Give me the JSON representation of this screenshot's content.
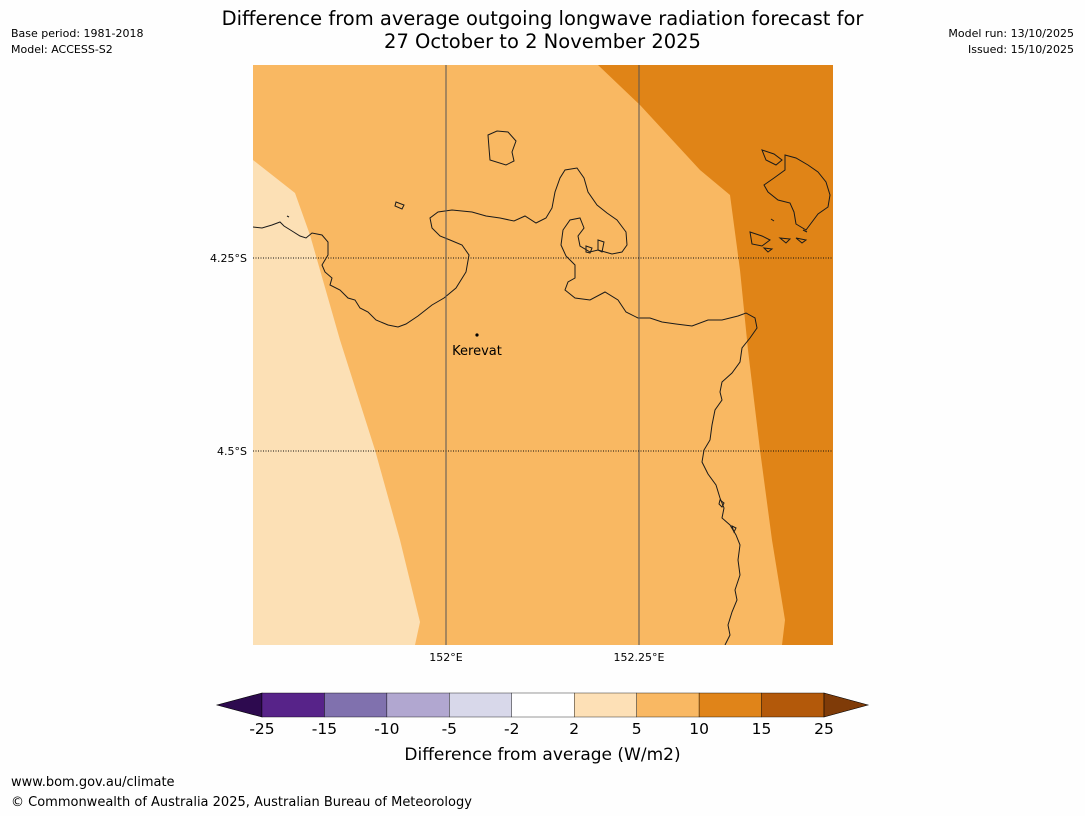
{
  "meta": {
    "base_period": "Base period: 1981-2018",
    "model": "Model: ACCESS-S2",
    "model_run": "Model run: 13/10/2025",
    "issued": "Issued: 15/10/2025"
  },
  "title": {
    "line1": "Difference from average outgoing longwave radiation forecast for",
    "line2": "27 October to 2 November 2025"
  },
  "map": {
    "lat_labels": [
      "4.25°S",
      "4.5°S"
    ],
    "lon_labels": [
      "152°E",
      "152.25°E"
    ],
    "place": "Kerevat",
    "colors": {
      "pale": "#fce0b5",
      "light": "#f9b862",
      "dark": "#e08417",
      "coast": "#1a1a1a"
    }
  },
  "colorbar": {
    "ticks": [
      "-25",
      "-15",
      "-10",
      "-5",
      "-2",
      "2",
      "5",
      "10",
      "15",
      "25"
    ],
    "colors": [
      "#2d0a4f",
      "#572389",
      "#8071ae",
      "#b1a7d0",
      "#d8d8ea",
      "#ffffff",
      "#fde0b6",
      "#f9b863",
      "#e08419",
      "#b3590a",
      "#7f3b08"
    ],
    "label": "Difference from average (W/m2)"
  },
  "footer": {
    "url": "www.bom.gov.au/climate",
    "copyright": "© Commonwealth of Australia 2025, Australian Bureau of Meteorology"
  }
}
